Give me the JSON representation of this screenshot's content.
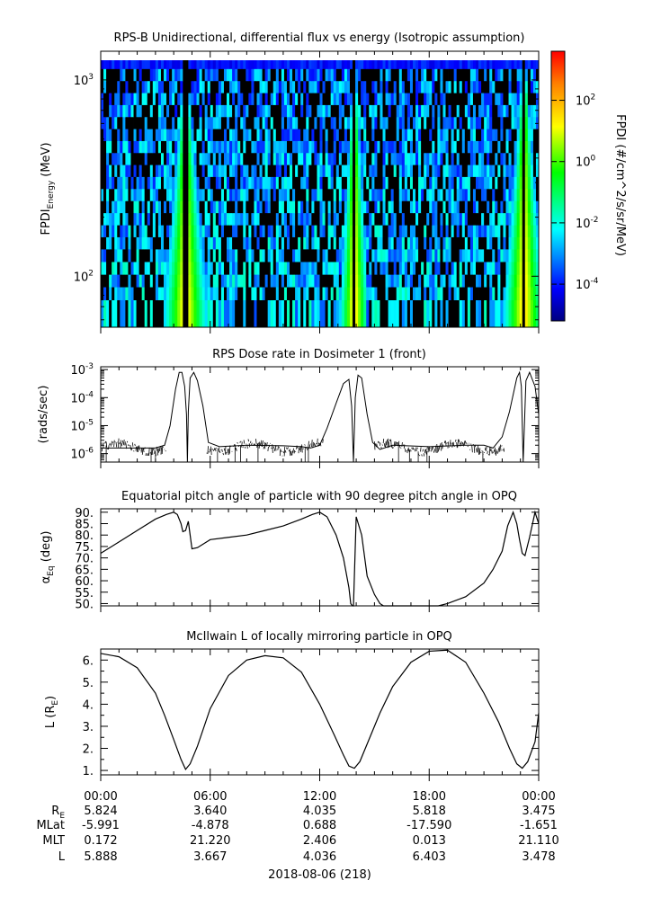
{
  "colors": {
    "axis": "#000000",
    "trace": "#000000",
    "no_data": "#000000",
    "background": "#ffffff"
  },
  "chart_data": [
    {
      "type": "heatmap",
      "title": "RPS-B  Unidirectional, differential flux vs energy (Isotropic assumption)",
      "ylabel_main": "FPDI",
      "ylabel_sub": "Energy",
      "ylabel_unit": " (MeV)",
      "y_scale": "log",
      "ylim": [
        55,
        1400
      ],
      "y_ticks": [
        {
          "value": 100,
          "base": "10",
          "exp": "2"
        },
        {
          "value": 1000,
          "base": "10",
          "exp": "3"
        }
      ],
      "x_hours": [
        0,
        24
      ],
      "energy_rows": [
        70,
        82,
        95,
        110,
        128,
        148,
        170,
        196,
        226,
        260,
        300,
        345,
        397,
        457,
        526,
        605,
        697,
        802,
        923,
        1063,
        1224
      ],
      "belt_passes_hours": [
        {
          "center": 4.65,
          "start": 3.35,
          "end": 5.85
        },
        {
          "center": 13.9,
          "start": 12.8,
          "end": 14.5
        },
        {
          "center": 23.2,
          "start": 21.6,
          "end": 24.0
        }
      ],
      "colorbar": {
        "label": "FPDI (#/cm^2/s/sr/MeV)",
        "scale": "log",
        "range_log10": [
          -5.2,
          3.6
        ],
        "ticks": [
          {
            "log": -4,
            "base": "10",
            "exp": "-4"
          },
          {
            "log": -2,
            "base": "10",
            "exp": "-2"
          },
          {
            "log": 0,
            "base": "10",
            "exp": "0"
          },
          {
            "log": 2,
            "base": "10",
            "exp": "2"
          }
        ],
        "colormap": "rainbow (blue → cyan → green → yellow → red)"
      }
    },
    {
      "type": "line",
      "title": "RPS  Dose rate in Dosimeter 1 (front)",
      "ylabel": "(rads/sec)",
      "y_scale": "log",
      "ylim_log10": [
        -6.3,
        -2.9
      ],
      "y_ticks": [
        {
          "log": -6,
          "base": "10",
          "exp": "-6"
        },
        {
          "log": -5,
          "base": "10",
          "exp": "-5"
        },
        {
          "log": -4,
          "base": "10",
          "exp": "-4"
        },
        {
          "log": -3,
          "base": "10",
          "exp": "-3"
        }
      ],
      "series": [
        {
          "name": "dose rate",
          "x_hours": [
            0,
            1,
            2,
            3,
            3.5,
            3.8,
            4.1,
            4.3,
            4.45,
            4.6,
            4.7,
            4.75,
            4.8,
            4.9,
            5.1,
            5.3,
            5.6,
            5.9,
            6.5,
            8,
            10,
            11,
            11.5,
            12,
            12.4,
            12.9,
            13.3,
            13.6,
            13.75,
            13.85,
            13.95,
            14.1,
            14.3,
            14.6,
            14.9,
            15.3,
            16,
            18,
            20,
            21,
            21.5,
            22,
            22.4,
            22.8,
            22.95,
            23.05,
            23.15,
            23.3,
            23.5,
            23.8,
            24
          ],
          "log10_values": [
            -5.8,
            -5.8,
            -5.8,
            -5.8,
            -5.7,
            -5.0,
            -3.7,
            -3.1,
            -3.1,
            -3.6,
            -4.6,
            -6.3,
            -4.5,
            -3.3,
            -3.1,
            -3.4,
            -4.3,
            -5.6,
            -5.75,
            -5.7,
            -5.72,
            -5.75,
            -5.8,
            -5.7,
            -5.1,
            -4.2,
            -3.5,
            -3.35,
            -4.3,
            -6.3,
            -4.0,
            -3.2,
            -3.3,
            -4.6,
            -5.6,
            -5.85,
            -5.7,
            -5.75,
            -5.7,
            -5.7,
            -5.8,
            -5.4,
            -4.5,
            -3.3,
            -3.1,
            -3.6,
            -6.3,
            -3.4,
            -3.1,
            -3.6,
            -4.6
          ]
        }
      ]
    },
    {
      "type": "line",
      "title": "Equatorial pitch angle of particle with 90 degree pitch angle in OPQ",
      "ylabel": "α",
      "ylabel_sub": "Eq",
      "ylabel_unit": " (deg)",
      "ylim": [
        49,
        91.5
      ],
      "y_ticks": [
        "50.",
        "55.",
        "60.",
        "65.",
        "70.",
        "75.",
        "80.",
        "85.",
        "90."
      ],
      "series": [
        {
          "name": "pitch angle",
          "x_hours": [
            0,
            1,
            2,
            3,
            3.6,
            4.0,
            4.2,
            4.4,
            4.5,
            4.65,
            4.8,
            5.0,
            5.3,
            6,
            7,
            8,
            9,
            10,
            11,
            11.6,
            12.0,
            12.4,
            12.9,
            13.3,
            13.6,
            13.7,
            13.8,
            13.85,
            14.0,
            14.3,
            14.6,
            15.0,
            15.3,
            15.5,
            16,
            17,
            18,
            18.5,
            19,
            20,
            21,
            21.5,
            22,
            22.3,
            22.6,
            22.8,
            22.95,
            23.1,
            23.25,
            23.5,
            23.8,
            24
          ],
          "values": [
            72,
            77,
            82,
            87,
            89,
            90,
            89,
            85,
            81.5,
            82,
            86,
            74,
            74.5,
            78,
            79,
            80,
            82,
            84,
            87,
            89,
            90,
            88,
            80,
            70,
            57,
            50,
            49,
            49,
            88,
            80,
            62,
            54,
            50,
            49,
            49,
            49,
            49,
            49,
            50,
            53,
            59,
            65,
            73,
            84,
            90,
            85,
            78,
            72,
            71,
            79,
            90,
            85
          ]
        }
      ]
    },
    {
      "type": "line",
      "title": "McIlwain L of locally mirroring particle in OPQ",
      "ylabel": "L (R",
      "ylabel_sub": "E",
      "ylabel_unit": ")",
      "ylim": [
        0.8,
        6.5
      ],
      "y_ticks": [
        "1.",
        "2.",
        "3.",
        "4.",
        "5.",
        "6."
      ],
      "series": [
        {
          "name": "L",
          "x_hours": [
            0,
            1,
            2,
            3,
            3.5,
            4.0,
            4.4,
            4.65,
            4.9,
            5.3,
            6,
            7,
            8,
            9,
            10,
            11,
            12,
            12.8,
            13.3,
            13.6,
            13.9,
            14.2,
            14.6,
            15.3,
            16,
            17,
            18,
            19,
            20,
            21,
            21.8,
            22.4,
            22.8,
            23.1,
            23.4,
            23.8,
            24
          ],
          "values": [
            6.3,
            6.15,
            5.65,
            4.5,
            3.5,
            2.4,
            1.5,
            1.05,
            1.3,
            2.1,
            3.8,
            5.3,
            6.0,
            6.2,
            6.1,
            5.45,
            4.0,
            2.6,
            1.7,
            1.2,
            1.1,
            1.4,
            2.2,
            3.6,
            4.8,
            5.9,
            6.4,
            6.45,
            5.9,
            4.5,
            3.2,
            2.0,
            1.3,
            1.1,
            1.4,
            2.3,
            3.6
          ]
        }
      ]
    }
  ],
  "x_axis": {
    "tick_labels": [
      "00:00",
      "06:00",
      "12:00",
      "18:00",
      "00:00"
    ],
    "date_label": "2018-08-06 (218)"
  },
  "ephemeris": {
    "rows": [
      {
        "label": "R",
        "label_sub": "E",
        "values": [
          "5.824",
          "3.640",
          "4.035",
          "5.818",
          "3.475"
        ]
      },
      {
        "label": "MLat",
        "label_sub": "",
        "values": [
          "-5.991",
          "-4.878",
          "0.688",
          "-17.590",
          "-1.651"
        ]
      },
      {
        "label": "MLT",
        "label_sub": "",
        "values": [
          "0.172",
          "21.220",
          "2.406",
          "0.013",
          "21.110"
        ]
      },
      {
        "label": "L",
        "label_sub": "",
        "values": [
          "5.888",
          "3.667",
          "4.036",
          "6.403",
          "3.478"
        ]
      }
    ]
  }
}
